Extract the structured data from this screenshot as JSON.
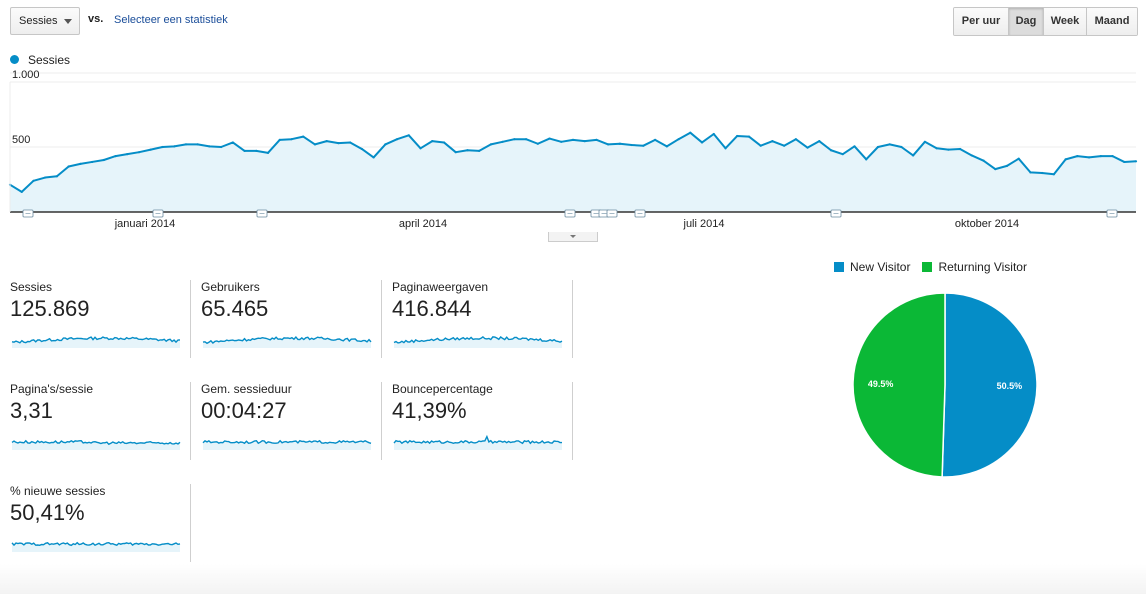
{
  "controls": {
    "metric_select": "Sessies",
    "vs_label": "vs.",
    "select_stat": "Selecteer een statistiek",
    "periods": [
      "Per uur",
      "Dag",
      "Week",
      "Maand"
    ],
    "active_period": "Dag"
  },
  "chart_data": [
    {
      "type": "area",
      "series": [
        {
          "name": "Sessies",
          "color": "#058dc7",
          "values": [
            210,
            155,
            240,
            265,
            275,
            350,
            370,
            385,
            400,
            430,
            445,
            460,
            480,
            500,
            505,
            520,
            520,
            505,
            500,
            535,
            470,
            470,
            455,
            555,
            560,
            580,
            520,
            545,
            530,
            535,
            485,
            420,
            520,
            560,
            590,
            490,
            545,
            535,
            460,
            475,
            470,
            520,
            540,
            560,
            560,
            525,
            565,
            540,
            555,
            545,
            555,
            520,
            525,
            515,
            510,
            555,
            505,
            560,
            610,
            535,
            600,
            490,
            585,
            580,
            510,
            545,
            510,
            560,
            495,
            545,
            475,
            445,
            505,
            405,
            500,
            520,
            500,
            435,
            540,
            490,
            480,
            485,
            435,
            395,
            330,
            355,
            410,
            305,
            300,
            290,
            405,
            430,
            420,
            430,
            430,
            385,
            390
          ]
        }
      ],
      "x_unit": "dag",
      "x_labels": [
        "januari 2014",
        "april 2014",
        "juli 2014",
        "oktober 2014"
      ],
      "y_ticks": [
        "1.000",
        "500"
      ],
      "ylim": [
        0,
        1000
      ],
      "annotation_markers": 11
    },
    {
      "type": "pie",
      "series": [
        {
          "name": "New Visitor",
          "value": 50.5,
          "label": "50.5%",
          "color": "#058dc7"
        },
        {
          "name": "Returning Visitor",
          "value": 49.5,
          "label": "49.5%",
          "color": "#0bb836"
        }
      ]
    }
  ],
  "scorecards": [
    {
      "label": "Sessies",
      "value": "125.869"
    },
    {
      "label": "Gebruikers",
      "value": "65.465"
    },
    {
      "label": "Paginaweergaven",
      "value": "416.844"
    },
    {
      "label": "Pagina's/sessie",
      "value": "3,31"
    },
    {
      "label": "Gem. sessieduur",
      "value": "00:04:27"
    },
    {
      "label": "Bouncepercentage",
      "value": "41,39%"
    },
    {
      "label": "% nieuwe sessies",
      "value": "50,41%"
    }
  ],
  "pie_legend": [
    "New Visitor",
    "Returning Visitor"
  ]
}
